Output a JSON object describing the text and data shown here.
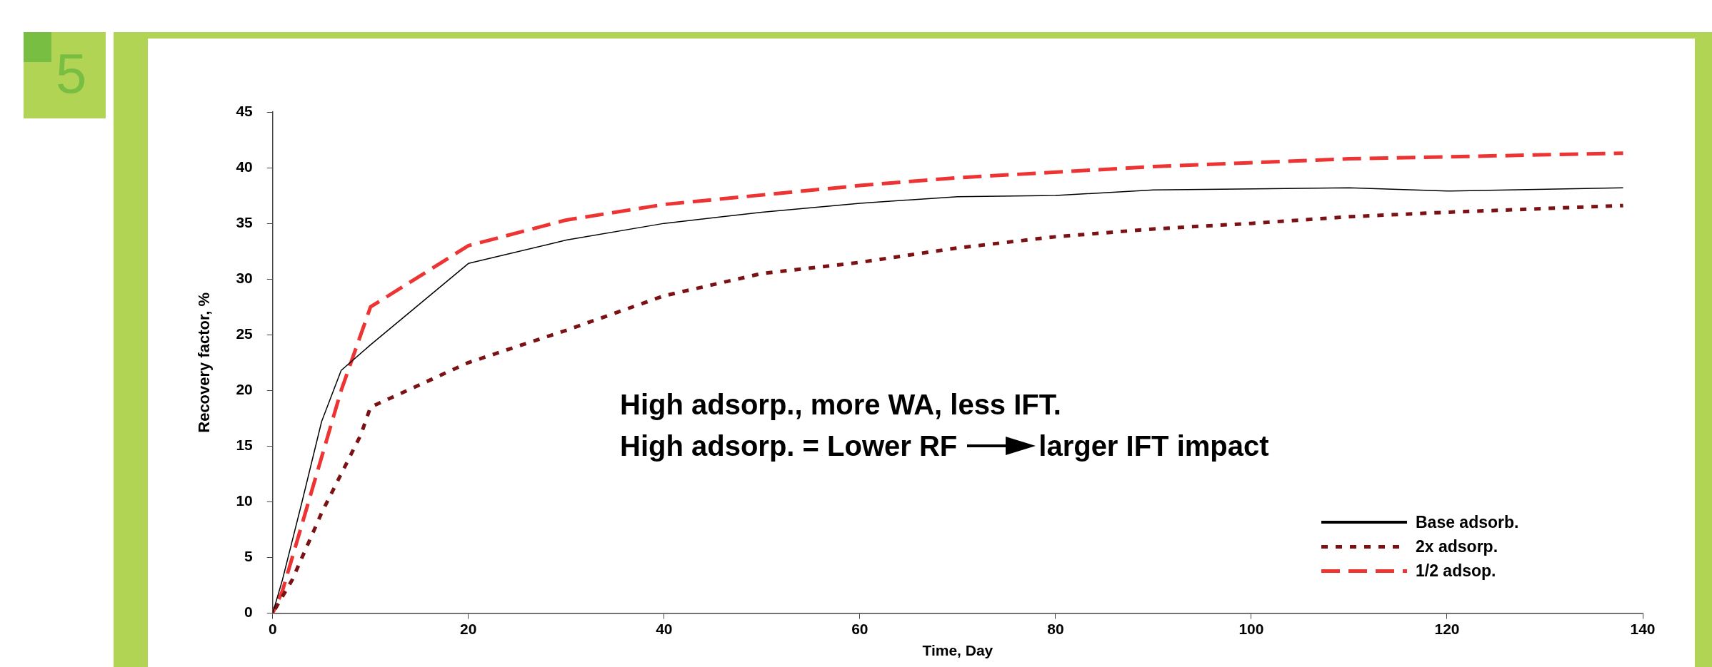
{
  "chart_data": {
    "type": "line",
    "xlabel": "Time, Day",
    "ylabel": "Recovery factor, %",
    "xlim": [
      0,
      140
    ],
    "xticks": [
      0,
      20,
      40,
      60,
      80,
      100,
      120,
      140
    ],
    "ylim": [
      0,
      45
    ],
    "yticks": [
      0,
      5,
      10,
      15,
      20,
      25,
      30,
      35,
      40,
      45
    ],
    "grid": false,
    "legend": "bottom right",
    "marker": "none",
    "annotations": [
      "5",
      "High adsorp., more WA, less IFT.",
      "High adsorp. = Lower RF",
      "larger IFT impact"
    ],
    "series": [
      {
        "name": "Base adsorb.",
        "color": "#000000",
        "line_style": "solid",
        "x": [
          0,
          1,
          3,
          5,
          7,
          10,
          20,
          30,
          40,
          50,
          60,
          70,
          80,
          90,
          110,
          120,
          138
        ],
        "values": [
          0,
          3,
          10,
          17.2,
          21.8,
          24.1,
          31.4,
          33.5,
          35,
          36,
          36.8,
          37.4,
          37.5,
          38,
          38.2,
          37.9,
          38.2
        ]
      },
      {
        "name": "2x adsorp.",
        "color": "#7b1113",
        "line_style": "dotted",
        "x": [
          0,
          2,
          5,
          7,
          9,
          10,
          15,
          20,
          30,
          40,
          50,
          60,
          70,
          80,
          90,
          100,
          110,
          120,
          138
        ],
        "values": [
          0,
          3,
          9,
          12.5,
          16,
          18.5,
          20.5,
          22.5,
          25.4,
          28.5,
          30.5,
          31.5,
          32.8,
          33.8,
          34.5,
          35,
          35.6,
          36,
          36.6
        ]
      },
      {
        "name": "1/2 adsop.",
        "color": "#ee3333",
        "line_style": "dashed",
        "x": [
          0,
          1,
          3,
          5,
          7,
          10,
          20,
          30,
          40,
          60,
          70,
          90,
          110,
          138
        ],
        "values": [
          0,
          2,
          8,
          14,
          20,
          27.5,
          33,
          35.3,
          36.7,
          38.4,
          39.1,
          40.1,
          40.8,
          41.3
        ]
      }
    ]
  }
}
